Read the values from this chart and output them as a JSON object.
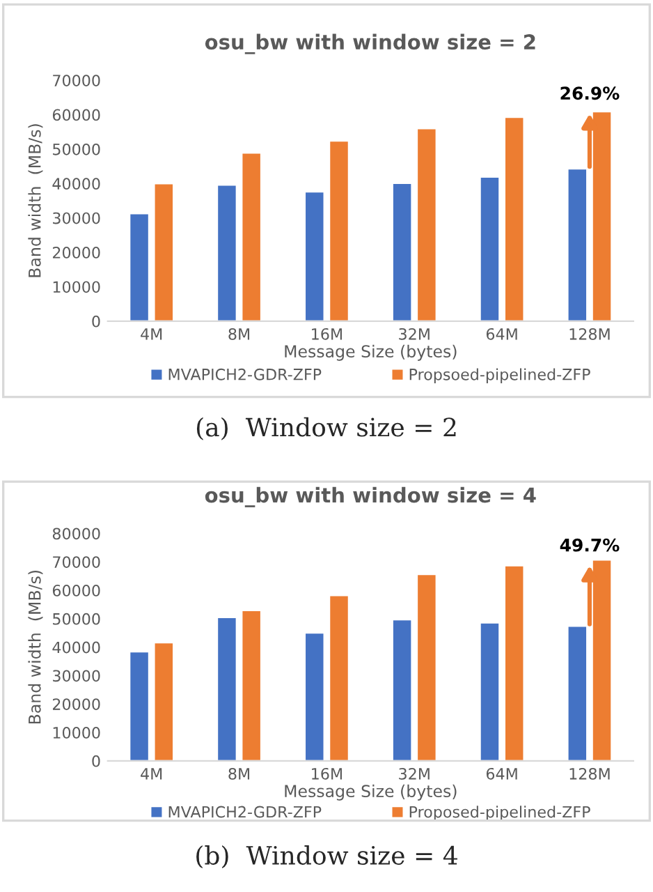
{
  "chart_data": [
    {
      "type": "bar",
      "title": "osu_bw with window size = 2",
      "xlabel": "Message Size (bytes)",
      "ylabel": "Band width  (MB/s)",
      "categories": [
        "4M",
        "8M",
        "16M",
        "32M",
        "64M",
        "128M"
      ],
      "series": [
        {
          "name": "MVAPICH2-GDR-ZFP",
          "color": "#4472c4",
          "values": [
            31300,
            39600,
            37600,
            40100,
            41900,
            44300
          ]
        },
        {
          "name": "Propsoed-pipelined-ZFP",
          "color": "#ed7d31",
          "values": [
            40000,
            48900,
            52400,
            56000,
            59300,
            60900
          ]
        }
      ],
      "ylim": [
        0,
        70000
      ],
      "yticks": [
        0,
        10000,
        20000,
        30000,
        40000,
        50000,
        60000,
        70000
      ],
      "grid": false,
      "legend": "bottom",
      "annotations": [
        {
          "text": "26.9%",
          "x": "128M",
          "y": 44300
        },
        "(a)  Window size = 2"
      ]
    },
    {
      "type": "bar",
      "title": "osu_bw with window size = 4",
      "xlabel": "Message Size (bytes)",
      "ylabel": "Band width  (MB/s)",
      "categories": [
        "4M",
        "8M",
        "16M",
        "32M",
        "64M",
        "128M"
      ],
      "series": [
        {
          "name": "MVAPICH2-GDR-ZFP",
          "color": "#4472c4",
          "values": [
            38400,
            50500,
            45000,
            49700,
            48600,
            47400
          ]
        },
        {
          "name": "Proposed-pipelined-ZFP",
          "color": "#ed7d31",
          "values": [
            41600,
            52900,
            58200,
            65600,
            68700,
            70700
          ]
        }
      ],
      "ylim": [
        0,
        80000
      ],
      "yticks": [
        0,
        10000,
        20000,
        30000,
        40000,
        50000,
        60000,
        70000,
        80000
      ],
      "grid": false,
      "legend": "bottom",
      "annotations": [
        {
          "text": "49.7%",
          "x": "128M",
          "y": 47400
        },
        "(b)  Window size = 4"
      ]
    }
  ]
}
